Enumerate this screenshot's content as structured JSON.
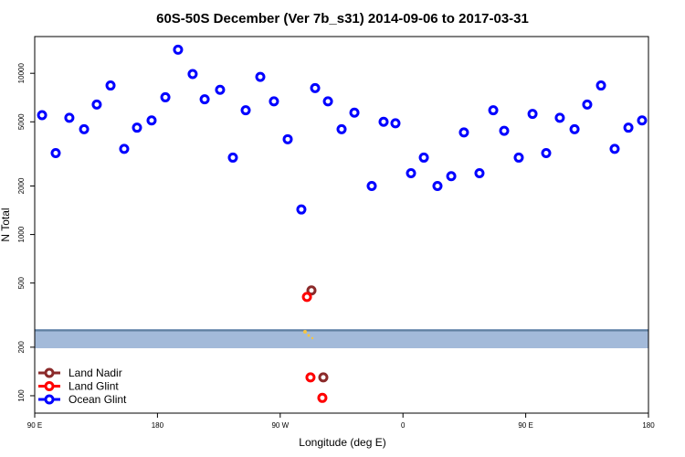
{
  "chart_data": {
    "type": "scatter",
    "title": "60S-50S December (Ver 7b_s31)   2014-09-06 to 2017-03-31",
    "x_label": "Longitude (deg E)",
    "y_label": "N Total",
    "xlim": [
      90,
      540
    ],
    "xticks": [
      {
        "value": 90,
        "label": "90 E"
      },
      180,
      {
        "value": 270,
        "label": "90 W"
      },
      {
        "value": 360,
        "label": "0"
      },
      {
        "value": 450,
        "label": "90 E"
      },
      {
        "value": 540,
        "label": "180"
      }
    ],
    "ylim": [
      78,
      16900
    ],
    "yticks": [
      100,
      200,
      500,
      1000,
      2000,
      5000,
      10000
    ],
    "log_y": true,
    "legend": "bottom-left",
    "series": [
      {
        "name": "Land Nadir",
        "color": "#8b2a2a",
        "x": [
          292.9,
          301.6
        ],
        "values": [
          450,
          130
        ]
      },
      {
        "name": "Land Glint",
        "color": "#ff0000",
        "x": [
          289.6,
          292.2,
          300.9
        ],
        "values": [
          410,
          130,
          97
        ]
      },
      {
        "name": "Ocean Glint",
        "color": "#0000ff",
        "x": [
          95.4,
          105.4,
          115.4,
          126.2,
          135.5,
          145.6,
          155.6,
          165,
          175.7,
          185.8,
          195.1,
          205.8,
          214.6,
          225.9,
          235.3,
          244.7,
          255.4,
          265.4,
          275.5,
          285.5,
          295.6,
          305,
          315,
          324.4,
          337.1,
          345.8,
          354.5,
          365.9,
          375.3,
          385.3,
          395.4,
          404.7,
          416.1,
          426.2,
          434.2,
          444.9,
          455,
          465,
          475,
          485.8,
          495.1,
          505.2,
          515.2,
          525.3,
          535.3
        ],
        "values": [
          5500,
          3200,
          5300,
          4500,
          6400,
          8400,
          3400,
          4600,
          5100,
          7100,
          14000,
          9900,
          6900,
          7900,
          3000,
          5900,
          9500,
          6700,
          3900,
          1430,
          8100,
          6700,
          4500,
          5700,
          2000,
          5000,
          4900,
          2400,
          3000,
          2000,
          2300,
          4300,
          2400,
          5900,
          4400,
          3000,
          5600,
          3200,
          5300,
          4500,
          6400,
          8400,
          3400,
          4600,
          5100
        ]
      }
    ]
  }
}
